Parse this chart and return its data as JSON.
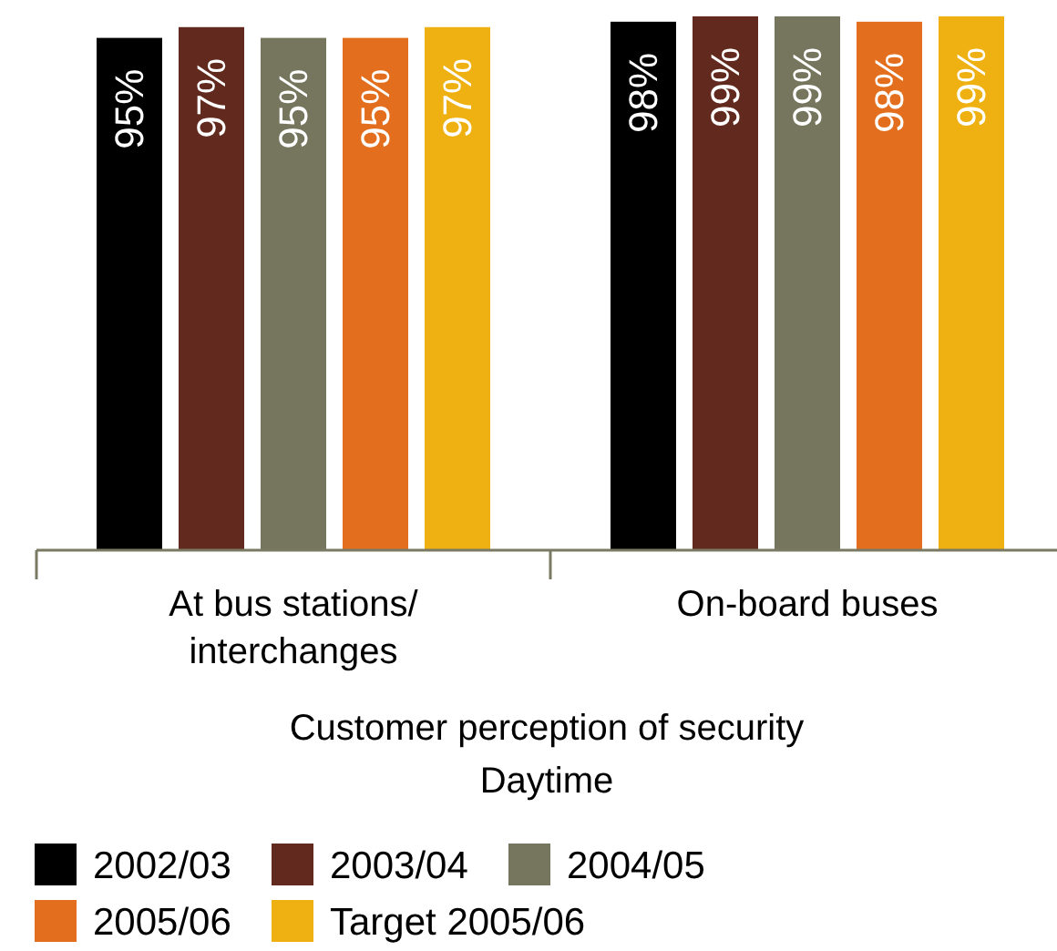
{
  "chart_data": {
    "type": "bar",
    "categories": [
      "At bus stations/ interchanges",
      "On-board buses"
    ],
    "series": [
      {
        "name": "2002/03",
        "color": "#000000",
        "values": [
          95,
          98
        ],
        "value_labels": [
          "95%",
          "98%"
        ]
      },
      {
        "name": "2003/04",
        "color": "#622a1e",
        "values": [
          97,
          99
        ],
        "value_labels": [
          "97%",
          "99%"
        ]
      },
      {
        "name": "2004/05",
        "color": "#76765f",
        "values": [
          95,
          99
        ],
        "value_labels": [
          "95%",
          "99%"
        ]
      },
      {
        "name": "2005/06",
        "color": "#e36f1e",
        "values": [
          95,
          98
        ],
        "value_labels": [
          "95%",
          "98%"
        ]
      },
      {
        "name": "Target 2005/06",
        "color": "#eeb111",
        "values": [
          97,
          99
        ],
        "value_labels": [
          "97%",
          "99%"
        ]
      }
    ],
    "ylim": [
      0,
      100
    ],
    "tick_labels": "x",
    "xlabel": "Customer perception of security\nDaytime",
    "legend": "bottom"
  }
}
